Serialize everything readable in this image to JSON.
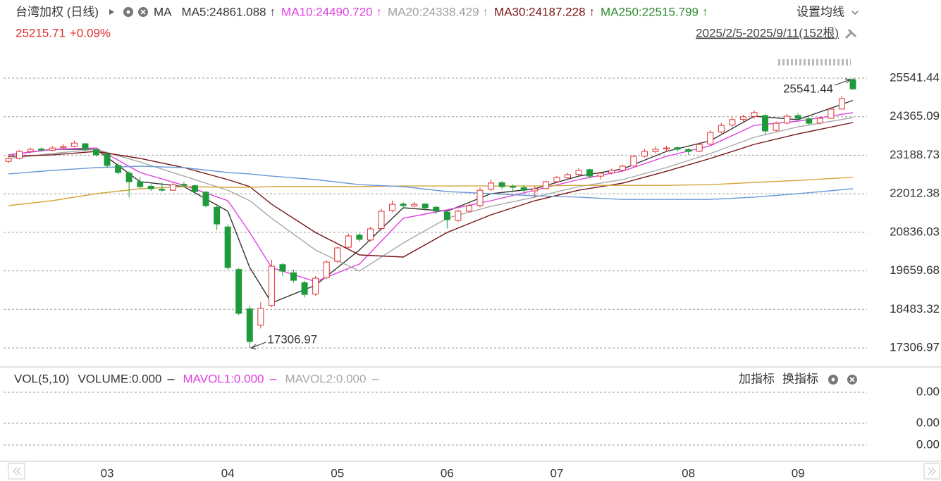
{
  "chart_data": [
    {
      "type": "candlestick",
      "title": "台湾加权 (日线)",
      "indicator": "MA",
      "settings": "设置均线",
      "last_price": 25215.71,
      "change": "+0.09%",
      "range": "2025/2/5-2025/9/11(152根)",
      "up_color": "#e03030",
      "down_color": "#1f9a3a",
      "ylim": [
        17306.97,
        25541.44
      ],
      "yticks": [
        17306.97,
        18483.32,
        19659.68,
        20836.03,
        22012.38,
        23188.73,
        24365.09,
        25541.44
      ],
      "grid": true,
      "xticks": [
        {
          "value": 9,
          "label": "03"
        },
        {
          "value": 20,
          "label": "04"
        },
        {
          "value": 30,
          "label": "05"
        },
        {
          "value": 40,
          "label": "06"
        },
        {
          "value": 50,
          "label": "07"
        },
        {
          "value": 62,
          "label": "08"
        },
        {
          "value": 72,
          "label": "09"
        }
      ],
      "max_label": 25541.44,
      "min_label": 17306.97,
      "candles": [
        [
          23000,
          23160,
          22950,
          23090
        ],
        [
          23090,
          23350,
          23060,
          23305
        ],
        [
          23300,
          23420,
          23250,
          23370
        ],
        [
          23380,
          23430,
          23300,
          23350
        ],
        [
          23340,
          23470,
          23310,
          23410
        ],
        [
          23420,
          23520,
          23380,
          23455
        ],
        [
          23460,
          23640,
          23430,
          23560
        ],
        [
          23540,
          23560,
          23320,
          23370
        ],
        [
          23360,
          23400,
          23150,
          23200
        ],
        [
          23220,
          23260,
          22800,
          22875
        ],
        [
          22880,
          22950,
          22600,
          22660
        ],
        [
          22640,
          22700,
          21900,
          22380
        ],
        [
          22380,
          22520,
          22180,
          22230
        ],
        [
          22240,
          22300,
          22100,
          22165
        ],
        [
          22150,
          22350,
          22080,
          22120
        ],
        [
          22120,
          22360,
          22100,
          22290
        ],
        [
          22300,
          22380,
          22200,
          22270
        ],
        [
          22260,
          22300,
          22000,
          22080
        ],
        [
          22060,
          22100,
          21600,
          21650
        ],
        [
          21600,
          21700,
          20900,
          21090
        ],
        [
          21000,
          21080,
          19700,
          19760
        ],
        [
          19700,
          19750,
          18300,
          18360
        ],
        [
          18500,
          18600,
          17306.97,
          17500
        ],
        [
          18000,
          18700,
          17900,
          18510
        ],
        [
          18600,
          20000,
          18550,
          19800
        ],
        [
          19850,
          19900,
          19500,
          19650
        ],
        [
          19600,
          19700,
          19300,
          19370
        ],
        [
          19300,
          19350,
          18850,
          18940
        ],
        [
          18950,
          19500,
          18900,
          19435
        ],
        [
          19450,
          19980,
          19400,
          19930
        ],
        [
          19950,
          20400,
          19900,
          20360
        ],
        [
          20380,
          20800,
          20300,
          20725
        ],
        [
          20750,
          20800,
          20550,
          20620
        ],
        [
          20600,
          21000,
          20550,
          20940
        ],
        [
          20950,
          21550,
          20900,
          21480
        ],
        [
          21500,
          21800,
          21450,
          21690
        ],
        [
          21700,
          21750,
          21550,
          21650
        ],
        [
          21640,
          21760,
          21600,
          21690
        ],
        [
          21700,
          21720,
          21500,
          21585
        ],
        [
          21600,
          21650,
          21400,
          21480
        ],
        [
          21450,
          21480,
          20950,
          21220
        ],
        [
          21200,
          21520,
          21150,
          21480
        ],
        [
          21480,
          21700,
          21450,
          21650
        ],
        [
          21650,
          22200,
          21600,
          22120
        ],
        [
          22150,
          22450,
          22100,
          22340
        ],
        [
          22350,
          22400,
          22150,
          22230
        ],
        [
          22240,
          22300,
          22100,
          22210
        ],
        [
          22200,
          22280,
          22050,
          22120
        ],
        [
          22100,
          22250,
          21900,
          22165
        ],
        [
          22170,
          22420,
          22150,
          22380
        ],
        [
          22380,
          22560,
          22350,
          22510
        ],
        [
          22500,
          22650,
          22450,
          22595
        ],
        [
          22600,
          22800,
          22550,
          22725
        ],
        [
          22750,
          22780,
          22480,
          22550
        ],
        [
          22550,
          22680,
          22450,
          22640
        ],
        [
          22650,
          22780,
          22600,
          22725
        ],
        [
          22730,
          22900,
          22700,
          22855
        ],
        [
          22860,
          23200,
          22840,
          23155
        ],
        [
          23160,
          23380,
          23120,
          23305
        ],
        [
          23300,
          23450,
          23250,
          23370
        ],
        [
          23380,
          23480,
          23300,
          23410
        ],
        [
          23420,
          23450,
          23300,
          23370
        ],
        [
          23360,
          23400,
          23200,
          23305
        ],
        [
          23310,
          23580,
          23280,
          23520
        ],
        [
          23530,
          23950,
          23500,
          23885
        ],
        [
          23900,
          24180,
          23850,
          24100
        ],
        [
          24110,
          24350,
          24050,
          24275
        ],
        [
          24280,
          24420,
          24200,
          24360
        ],
        [
          24370,
          24560,
          24300,
          24490
        ],
        [
          24400,
          24450,
          23800,
          23930
        ],
        [
          23950,
          24220,
          23900,
          24165
        ],
        [
          24170,
          24450,
          24120,
          24380
        ],
        [
          24400,
          24480,
          24250,
          24315
        ],
        [
          24300,
          24350,
          24100,
          24165
        ],
        [
          24170,
          24380,
          24130,
          24315
        ],
        [
          24320,
          24650,
          24300,
          24595
        ],
        [
          24600,
          25000,
          24580,
          24915
        ],
        [
          25500,
          25541.44,
          25180,
          25215.71
        ]
      ],
      "ma_x": [
        0,
        4,
        8,
        12,
        16,
        20,
        22,
        24,
        28,
        32,
        36,
        40,
        44,
        48,
        52,
        56,
        60,
        64,
        68,
        72,
        77
      ],
      "series": [
        {
          "name": "MA5:24861.088",
          "trend": "↑",
          "color": "#333333",
          "label_color": "#333333",
          "values": [
            23200,
            23370,
            23370,
            22380,
            22230,
            21480,
            19760,
            18680,
            19220,
            20295,
            21585,
            21480,
            22015,
            22165,
            22550,
            22770,
            23305,
            23630,
            24380,
            24275,
            24861.088
          ]
        },
        {
          "name": "MA10:24490.720",
          "trend": "↑",
          "color": "#e040e0",
          "label_color": "#e040e0",
          "values": [
            23200,
            23370,
            23410,
            22660,
            22270,
            21800,
            20830,
            19760,
            19330,
            19865,
            21265,
            21520,
            21800,
            22120,
            22445,
            22705,
            23155,
            23480,
            24100,
            24230,
            24490.72
          ]
        },
        {
          "name": "MA20:24338.429",
          "trend": "↑",
          "color": "#a8a8a8",
          "label_color": "#a0a0a0",
          "values": [
            23090,
            23240,
            23370,
            22980,
            22550,
            22120,
            21800,
            21265,
            20295,
            19650,
            20510,
            21265,
            21630,
            21910,
            22230,
            22445,
            22810,
            23240,
            23735,
            24055,
            24338.429
          ]
        },
        {
          "name": "MA30:24187.228",
          "trend": "↑",
          "color": "#7a1414",
          "label_color": "#7a1414",
          "values": [
            23155,
            23200,
            23305,
            23090,
            22810,
            22445,
            22230,
            21690,
            20830,
            20145,
            20080,
            20830,
            21370,
            21800,
            22120,
            22335,
            22700,
            23090,
            23520,
            23840,
            24187.228
          ]
        },
        {
          "name": "MA250:22515.799",
          "trend": "↑",
          "color": "#d4a53a",
          "label_color": "#2e8b2e",
          "values": [
            21650,
            21800,
            22015,
            22165,
            22230,
            22210,
            22210,
            22230,
            22230,
            22230,
            22250,
            22250,
            22250,
            22250,
            22270,
            22270,
            22270,
            22290,
            22360,
            22420,
            22515.799
          ]
        },
        {
          "color": "#6a9ad8",
          "values": [
            22620,
            22725,
            22810,
            22855,
            22810,
            22660,
            22620,
            22550,
            22445,
            22290,
            22230,
            22080,
            22015,
            21950,
            21910,
            21840,
            21840,
            21840,
            21910,
            22015,
            22165
          ]
        }
      ]
    },
    {
      "type": "volume",
      "title": "VOL(5,10)",
      "buttons": [
        "加指标",
        "换指标"
      ],
      "ylim": [
        -0.00023,
        0.001
      ],
      "yticks": [
        {
          "value": 0.00075,
          "label": "0.00"
        },
        {
          "value": 0.00031,
          "label": "0.00"
        },
        {
          "value": 0,
          "label": "0.00"
        }
      ],
      "grid": true,
      "series": [
        {
          "name": "VOLUME:0.000",
          "color": "#333333"
        },
        {
          "name": "MAVOL1:0.000",
          "color": "#e040e0"
        },
        {
          "name": "MAVOL2:0.000",
          "color": "#a8a8a8"
        }
      ]
    }
  ]
}
